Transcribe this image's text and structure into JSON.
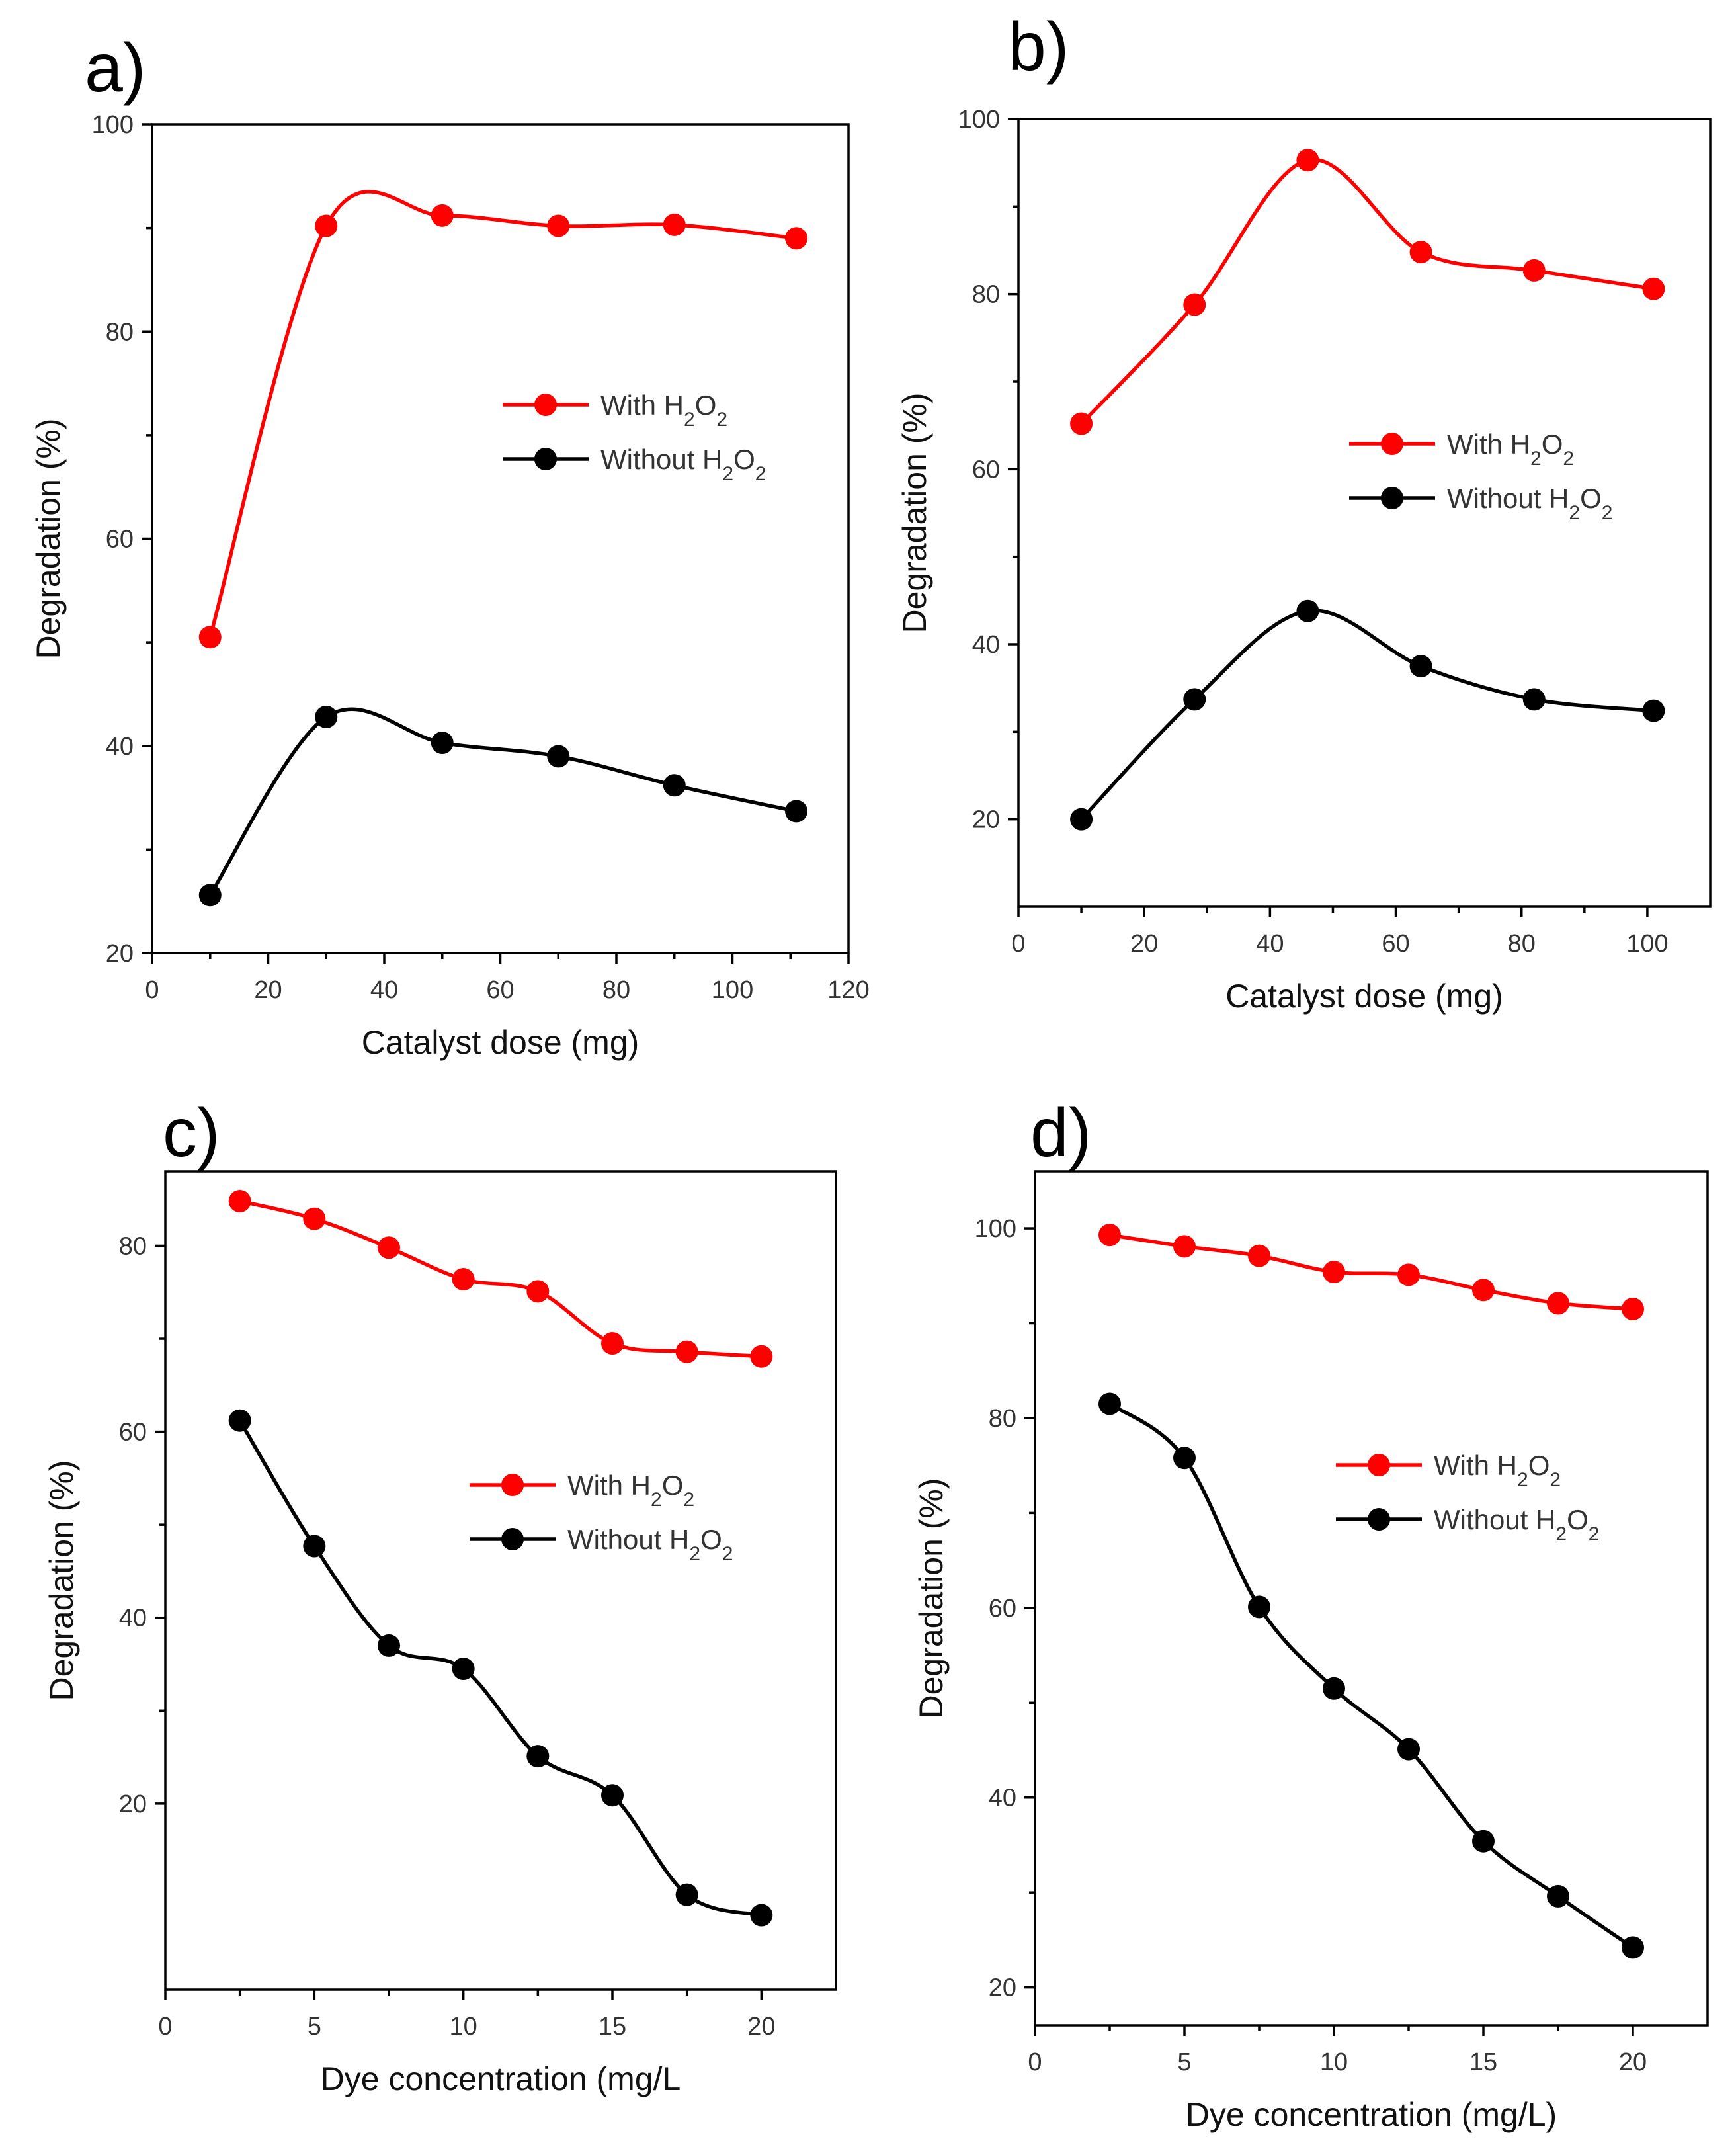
{
  "figure": {
    "legend_with": "With H₂O₂",
    "legend_without": "Without H₂O₂"
  },
  "colors": {
    "red": "#ff0000",
    "black": "#000000"
  },
  "chart_data": [
    {
      "type": "line",
      "panel": "a)",
      "xlabel": "Catalyst dose (mg)",
      "ylabel": "Degradation (%)",
      "xlim": [
        0,
        120
      ],
      "ylim": [
        20,
        100
      ],
      "xticks": [
        0,
        20,
        40,
        60,
        80,
        100,
        120
      ],
      "yticks": [
        20,
        40,
        60,
        80,
        100
      ],
      "legend_position": "center-right",
      "series": [
        {
          "name": "With H₂O₂",
          "color": "#ff0000",
          "x": [
            10,
            30,
            50,
            70,
            90,
            111
          ],
          "y": [
            50.5,
            90.2,
            91.2,
            90.2,
            90.3,
            89.0
          ]
        },
        {
          "name": "Without H₂O₂",
          "color": "#000000",
          "x": [
            10,
            30,
            50,
            70,
            90,
            111
          ],
          "y": [
            25.6,
            42.8,
            40.3,
            39.0,
            36.2,
            33.7
          ]
        }
      ]
    },
    {
      "type": "line",
      "panel": "b)",
      "xlabel": "Catalyst dose (mg)",
      "ylabel": "Degradation (%)",
      "xlim": [
        0,
        110
      ],
      "ylim": [
        10,
        100
      ],
      "xticks": [
        0,
        20,
        40,
        60,
        80,
        100
      ],
      "yticks": [
        20,
        40,
        60,
        80,
        100
      ],
      "legend_position": "center-right",
      "series": [
        {
          "name": "With H₂O₂",
          "color": "#ff0000",
          "x": [
            10,
            28,
            46,
            64,
            82,
            101
          ],
          "y": [
            65.2,
            78.8,
            95.3,
            84.8,
            82.7,
            80.6
          ]
        },
        {
          "name": "Without H₂O₂",
          "color": "#000000",
          "x": [
            10,
            28,
            46,
            64,
            82,
            101
          ],
          "y": [
            20.0,
            33.7,
            43.8,
            37.5,
            33.7,
            32.4
          ]
        }
      ]
    },
    {
      "type": "line",
      "panel": "c)",
      "xlabel": "Dye concentration (mg/L",
      "ylabel": "Degradation (%)",
      "xlim": [
        0,
        22.5
      ],
      "ylim": [
        0,
        88
      ],
      "xticks": [
        0,
        5,
        10,
        15,
        20
      ],
      "yticks": [
        20,
        40,
        60,
        80
      ],
      "legend_position": "center-right",
      "series": [
        {
          "name": "With H₂O₂",
          "color": "#ff0000",
          "x": [
            2.5,
            5,
            7.5,
            10,
            12.5,
            15,
            17.5,
            20
          ],
          "y": [
            84.8,
            82.9,
            79.8,
            76.4,
            75.1,
            69.5,
            68.6,
            68.1
          ]
        },
        {
          "name": "Without H₂O₂",
          "color": "#000000",
          "x": [
            2.5,
            5,
            7.5,
            10,
            12.5,
            15,
            17.5,
            20
          ],
          "y": [
            61.2,
            47.7,
            37.0,
            34.5,
            25.1,
            20.9,
            10.2,
            8.0
          ]
        }
      ]
    },
    {
      "type": "line",
      "panel": "d)",
      "xlabel": "Dye concentration (mg/L)",
      "ylabel": "Degradation (%)",
      "xlim": [
        0,
        22.5
      ],
      "ylim": [
        16,
        106
      ],
      "xticks": [
        0,
        5,
        10,
        15,
        20
      ],
      "yticks": [
        20,
        40,
        60,
        80,
        100
      ],
      "legend_position": "center-right",
      "series": [
        {
          "name": "With H₂O₂",
          "color": "#ff0000",
          "x": [
            2.5,
            5,
            7.5,
            10,
            12.5,
            15,
            17.5,
            20
          ],
          "y": [
            99.3,
            98.1,
            97.1,
            95.4,
            95.1,
            93.5,
            92.1,
            91.5
          ]
        },
        {
          "name": "Without H₂O₂",
          "color": "#000000",
          "x": [
            2.5,
            5,
            7.5,
            10,
            12.5,
            15,
            17.5,
            20
          ],
          "y": [
            81.5,
            75.8,
            60.1,
            51.5,
            45.1,
            35.4,
            29.6,
            24.2
          ]
        }
      ]
    }
  ]
}
